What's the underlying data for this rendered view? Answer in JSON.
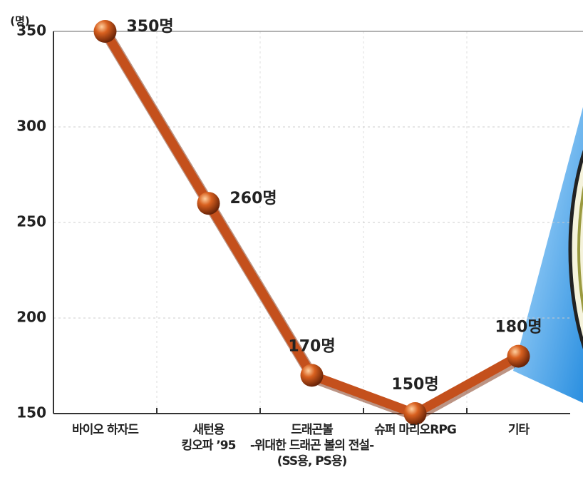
{
  "chart_data": {
    "type": "line",
    "y_unit": "(명)",
    "categories": [
      "바이오 하자드",
      "새턴용\n킹오파 ’95",
      "드래곤볼\n-위대한 드래곤 볼의 전설-\n(SS용, PS용)",
      "슈퍼 마리오RPG",
      "기타"
    ],
    "values": [
      350,
      260,
      170,
      150,
      180
    ],
    "value_labels": [
      "350명",
      "260명",
      "170명",
      "150명",
      "180명"
    ],
    "color": "#c4501c",
    "ylim": [
      150,
      350
    ],
    "yticks": [
      150,
      200,
      250,
      300,
      350
    ],
    "grid": true
  }
}
